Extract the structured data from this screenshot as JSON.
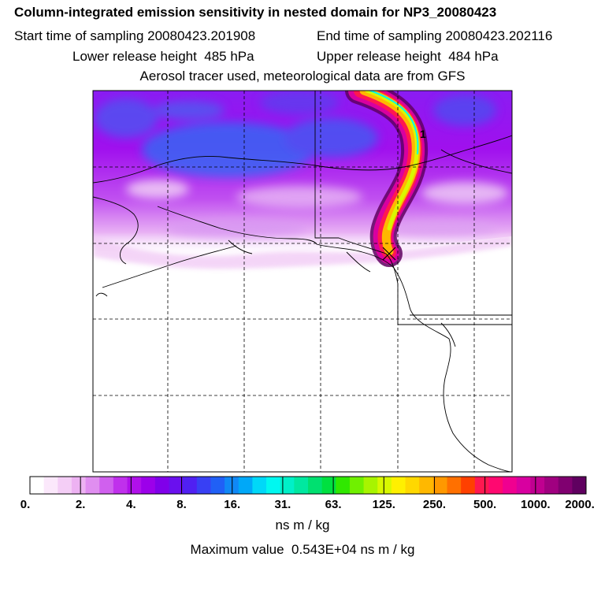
{
  "header": {
    "title": "Column-integrated emission sensitivity in nested domain for NP3_20080423",
    "start_label": "Start time of sampling 20080423.201908",
    "end_label": "End time of sampling 20080423.202116",
    "lower_label": "Lower release height  485 hPa",
    "upper_label": "Upper release height  484 hPa",
    "tracer_line": "Aerosol tracer used, meteorological data are from GFS"
  },
  "map": {
    "release_marker": "1",
    "background": "#ffffff",
    "land_outline": "#000000"
  },
  "colorbar": {
    "labels": [
      "0.",
      "2.",
      "4.",
      "8.",
      "16.",
      "31.",
      "63.",
      "125.",
      "250.",
      "500.",
      "1000.",
      "2000."
    ],
    "colors": [
      "#ffffff",
      "#fbe8fb",
      "#f4cef6",
      "#edb2f2",
      "#e08ef0",
      "#d060ee",
      "#c030ec",
      "#b010ea",
      "#9c00ea",
      "#8000ea",
      "#6a10ee",
      "#5020f2",
      "#3840f4",
      "#2060f6",
      "#1088f6",
      "#00a8f8",
      "#00d8f8",
      "#00f8f0",
      "#00f0c8",
      "#00e8a0",
      "#00e070",
      "#00e040",
      "#30e800",
      "#70f000",
      "#a8f400",
      "#d8f800",
      "#fff000",
      "#ffd800",
      "#ffb800",
      "#ff9800",
      "#ff7000",
      "#ff4000",
      "#ff1850",
      "#ff0870",
      "#f00090",
      "#d800a0",
      "#c00090",
      "#a00080",
      "#800070",
      "#600060"
    ],
    "units": "ns m / kg",
    "max_line": "Maximum value  0.543E+04 ns m / kg"
  },
  "chart_data": {
    "type": "heatmap",
    "title": "Column-integrated emission sensitivity in nested domain for NP3_20080423",
    "color_scale_levels": [
      0,
      2,
      4,
      8,
      16,
      31,
      63,
      125,
      250,
      500,
      1000,
      2000
    ],
    "units": "ns m / kg",
    "maximum_value": 5430
  }
}
